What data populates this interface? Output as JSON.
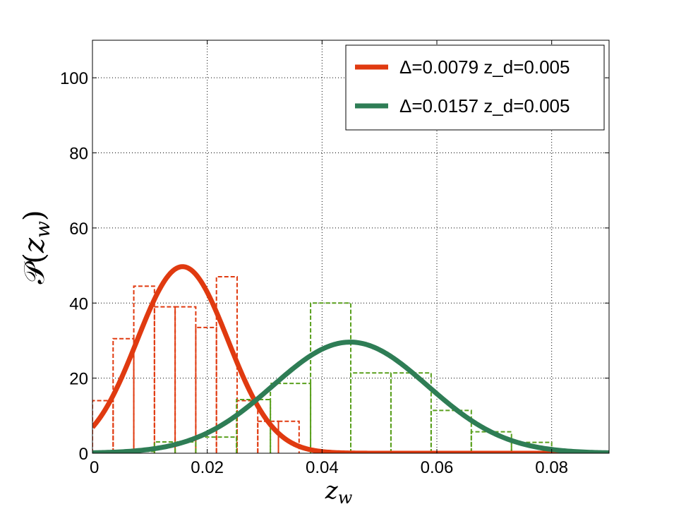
{
  "chart_data": {
    "type": "line",
    "xlabel": "z_w",
    "ylabel": "P(z_w)",
    "xlim": [
      0,
      0.09
    ],
    "ylim": [
      0,
      110
    ],
    "xticks": [
      0,
      0.02,
      0.04,
      0.06,
      0.08
    ],
    "xtick_labels": [
      "0",
      "0.02",
      "0.04",
      "0.06",
      "0.08"
    ],
    "yticks": [
      0,
      20,
      40,
      60,
      80,
      100
    ],
    "ytick_labels": [
      "0",
      "20",
      "40",
      "60",
      "80",
      "100"
    ],
    "grid": true,
    "legend_position": "top-right",
    "series": [
      {
        "name": "Δ=0.0079 z_d=0.005",
        "kind": "gaussian",
        "mean": 0.0157,
        "amplitude": 49.7,
        "sigma": 0.0079,
        "color": "#e03a10"
      },
      {
        "name": "Δ=0.0157 z_d=0.005",
        "kind": "gaussian",
        "mean": 0.0449,
        "amplitude": 29.6,
        "sigma": 0.0135,
        "color": "#2e7d55"
      }
    ],
    "histograms": [
      {
        "color": "#e03a10",
        "dashed": true,
        "bars": [
          {
            "x0": 0.0,
            "x1": 0.0036,
            "y": 14
          },
          {
            "x0": 0.0036,
            "x1": 0.0072,
            "y": 30.5
          },
          {
            "x0": 0.0072,
            "x1": 0.0108,
            "y": 44.5
          },
          {
            "x0": 0.0108,
            "x1": 0.0144,
            "y": 39
          },
          {
            "x0": 0.0144,
            "x1": 0.018,
            "y": 39
          },
          {
            "x0": 0.018,
            "x1": 0.0216,
            "y": 33.5
          },
          {
            "x0": 0.0216,
            "x1": 0.0252,
            "y": 47
          },
          {
            "x0": 0.0252,
            "x1": 0.0288,
            "y": 14
          },
          {
            "x0": 0.0288,
            "x1": 0.0324,
            "y": 8.5
          },
          {
            "x0": 0.0324,
            "x1": 0.036,
            "y": 8.5
          }
        ]
      },
      {
        "color": "#5aa01e",
        "dashed": true,
        "bars": [
          {
            "x0": 0.0,
            "x1": 0.0036,
            "y": 0.3
          },
          {
            "x0": 0.0036,
            "x1": 0.0072,
            "y": 0.3
          },
          {
            "x0": 0.0072,
            "x1": 0.0108,
            "y": 0.5
          },
          {
            "x0": 0.0108,
            "x1": 0.0144,
            "y": 3
          },
          {
            "x0": 0.0144,
            "x1": 0.018,
            "y": 3
          },
          {
            "x0": 0.018,
            "x1": 0.0251,
            "y": 4.3
          },
          {
            "x0": 0.0251,
            "x1": 0.031,
            "y": 14.3
          },
          {
            "x0": 0.031,
            "x1": 0.038,
            "y": 18.6
          },
          {
            "x0": 0.038,
            "x1": 0.045,
            "y": 40
          },
          {
            "x0": 0.045,
            "x1": 0.052,
            "y": 21.4
          },
          {
            "x0": 0.052,
            "x1": 0.059,
            "y": 21.4
          },
          {
            "x0": 0.059,
            "x1": 0.066,
            "y": 11.4
          },
          {
            "x0": 0.066,
            "x1": 0.073,
            "y": 5.7
          },
          {
            "x0": 0.073,
            "x1": 0.08,
            "y": 2.9
          }
        ]
      }
    ]
  }
}
